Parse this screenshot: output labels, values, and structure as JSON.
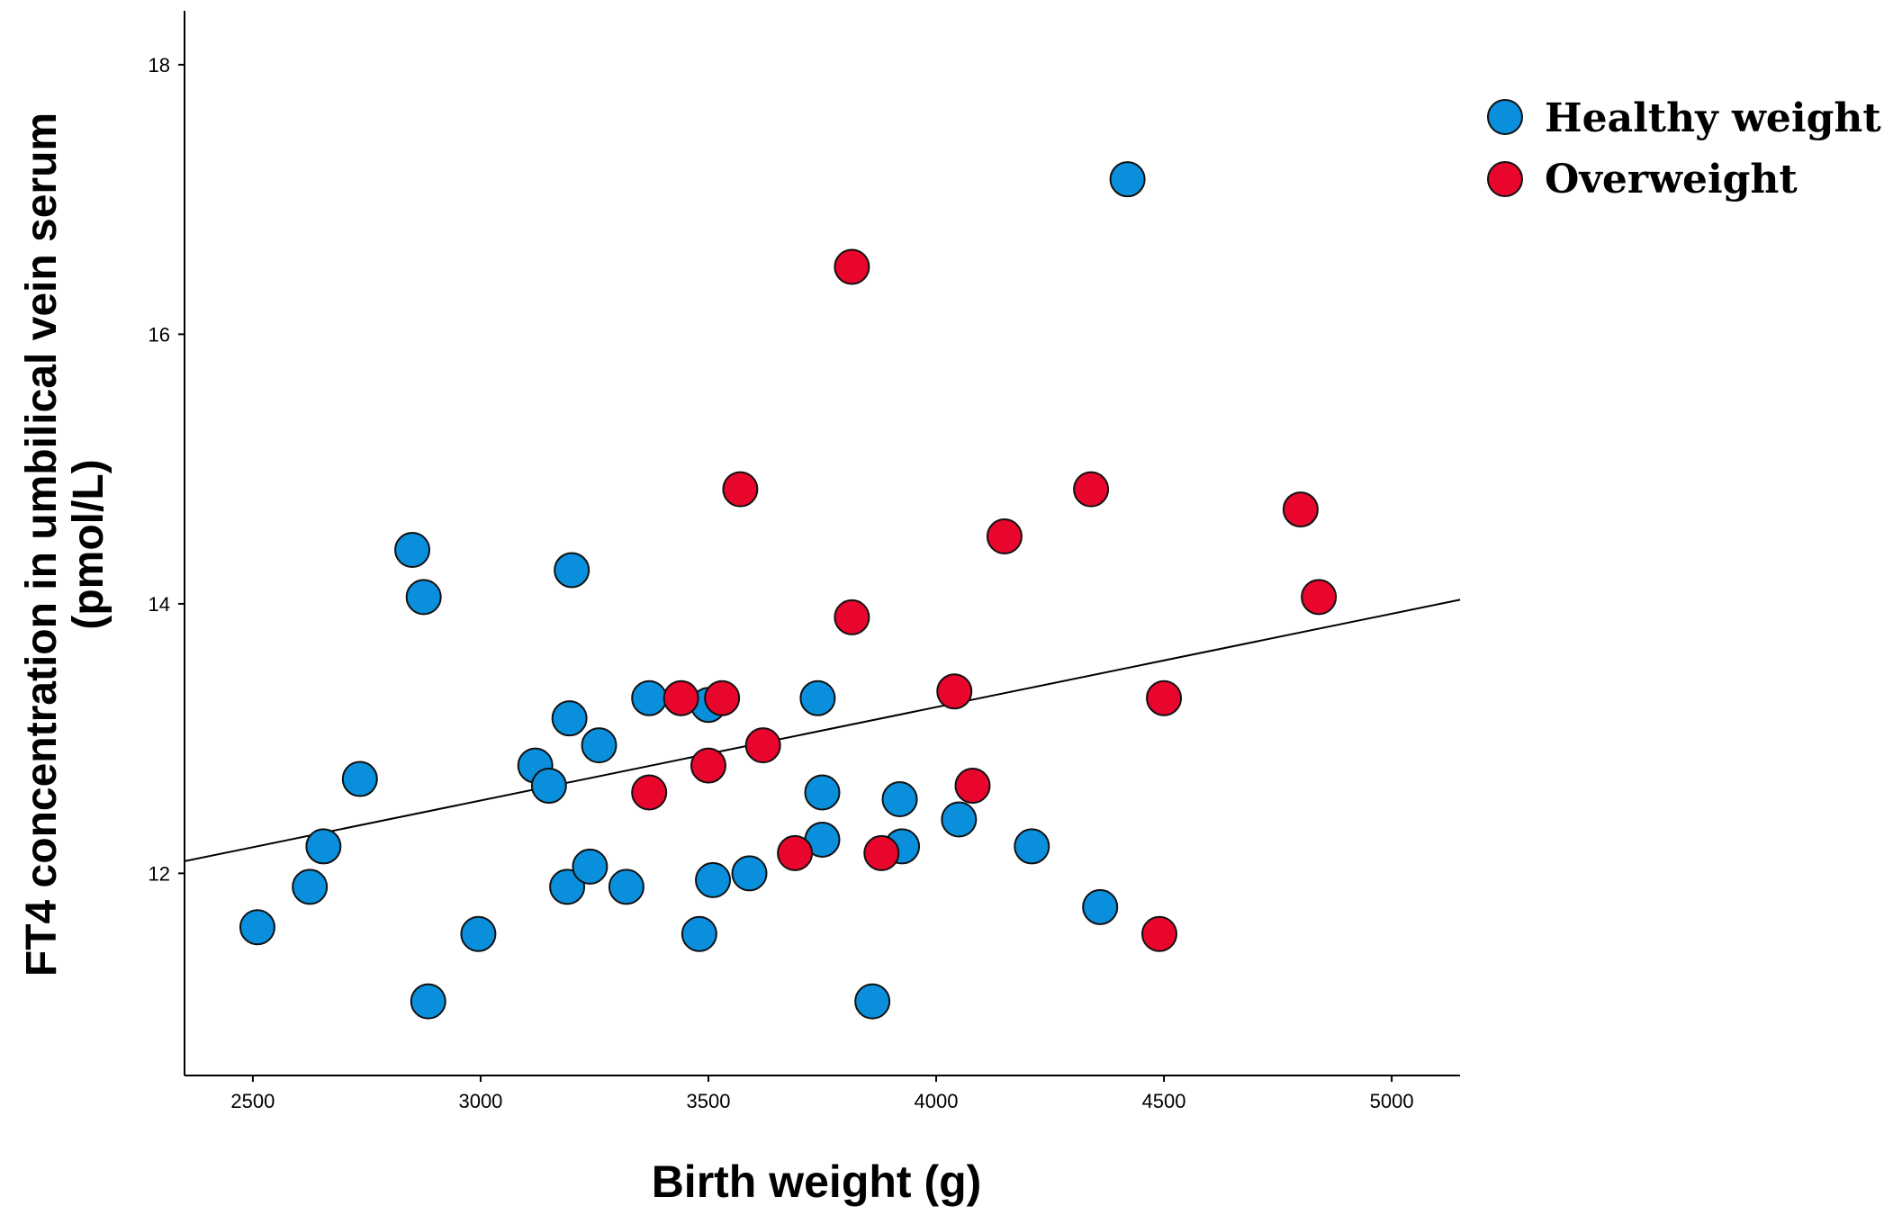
{
  "chart_data": {
    "type": "scatter",
    "title": "",
    "xlabel": "Birth weight (g)",
    "ylabel_line1": "FT4 concentration in umbilical vein serum",
    "ylabel_line2": "(pmol/L)",
    "xlim": [
      2350,
      5150
    ],
    "ylim": [
      10.5,
      18.4
    ],
    "x_ticks": [
      2500,
      3000,
      3500,
      4000,
      4500,
      5000
    ],
    "y_ticks": [
      12,
      14,
      16,
      18
    ],
    "grid": false,
    "legend_position": "top-right",
    "series": [
      {
        "name": "Healthy weight",
        "color": "#0a8fdc",
        "points": [
          [
            2510,
            11.6
          ],
          [
            2625,
            11.9
          ],
          [
            2655,
            12.2
          ],
          [
            2735,
            12.7
          ],
          [
            2850,
            14.4
          ],
          [
            2875,
            14.05
          ],
          [
            2885,
            11.05
          ],
          [
            2995,
            11.55
          ],
          [
            3120,
            12.8
          ],
          [
            3150,
            12.65
          ],
          [
            3190,
            11.9
          ],
          [
            3195,
            13.15
          ],
          [
            3200,
            14.25
          ],
          [
            3240,
            12.05
          ],
          [
            3260,
            12.95
          ],
          [
            3320,
            11.9
          ],
          [
            3370,
            13.3
          ],
          [
            3480,
            11.55
          ],
          [
            3500,
            13.25
          ],
          [
            3510,
            11.95
          ],
          [
            3590,
            12.0
          ],
          [
            3740,
            13.3
          ],
          [
            3750,
            12.6
          ],
          [
            3750,
            12.25
          ],
          [
            3860,
            11.05
          ],
          [
            3920,
            12.55
          ],
          [
            3925,
            12.2
          ],
          [
            4050,
            12.4
          ],
          [
            4210,
            12.2
          ],
          [
            4360,
            11.75
          ],
          [
            4420,
            17.15
          ]
        ]
      },
      {
        "name": "Overweight",
        "color": "#e8062c",
        "points": [
          [
            3370,
            12.6
          ],
          [
            3440,
            13.3
          ],
          [
            3500,
            12.8
          ],
          [
            3530,
            13.3
          ],
          [
            3570,
            14.85
          ],
          [
            3620,
            12.95
          ],
          [
            3690,
            12.15
          ],
          [
            3815,
            16.5
          ],
          [
            3815,
            13.9
          ],
          [
            3880,
            12.15
          ],
          [
            4040,
            13.35
          ],
          [
            4080,
            12.65
          ],
          [
            4150,
            14.5
          ],
          [
            4340,
            14.85
          ],
          [
            4490,
            11.55
          ],
          [
            4500,
            13.3
          ],
          [
            4800,
            14.7
          ],
          [
            4840,
            14.05
          ]
        ]
      }
    ],
    "fit_line": {
      "name": "Linear fit (all data)",
      "x": [
        2350,
        5150
      ],
      "y": [
        12.09,
        14.03
      ],
      "color": "#000000"
    }
  }
}
